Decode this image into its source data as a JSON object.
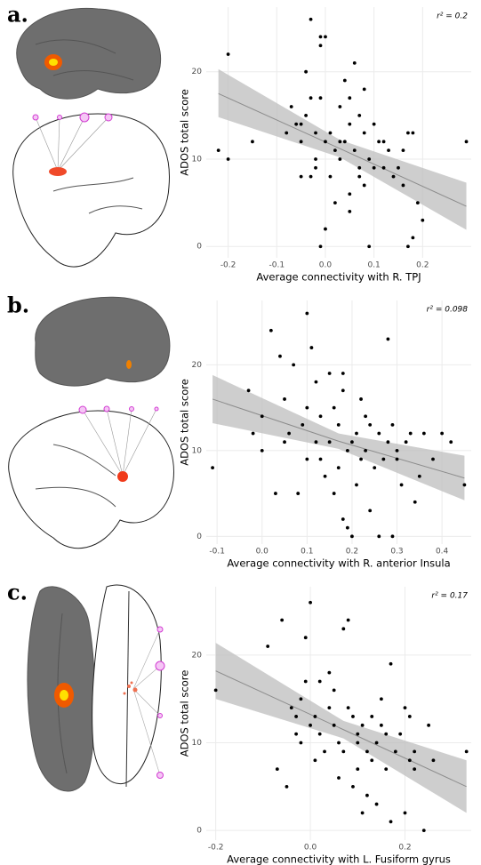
{
  "chart_data": [
    {
      "type": "scatter",
      "panel": "a.",
      "x_label": "Average connectivity with R. TPJ",
      "y_label": "ADOS total score",
      "annotation": "r² = 0.2",
      "color": "#000000",
      "band_color": "#bdbdbd",
      "line_color": "#8c8c8c",
      "xlim": [
        -0.245,
        0.3
      ],
      "ylim": [
        -1.3,
        27.4
      ],
      "xticks": [
        -0.2,
        -0.1,
        {
          "value": 0,
          "label": "0.0"
        },
        0.1,
        0.2
      ],
      "yticks": [
        0,
        10,
        20
      ],
      "grid": true,
      "x": [
        -0.22,
        -0.2,
        -0.2,
        -0.15,
        -0.08,
        -0.07,
        -0.06,
        -0.05,
        -0.05,
        -0.04,
        -0.04,
        -0.03,
        -0.03,
        -0.02,
        -0.02,
        -0.01,
        -0.01,
        -0.01,
        0,
        0,
        0.01,
        0.01,
        0.02,
        0.02,
        0.03,
        0.03,
        0.04,
        0.04,
        0.05,
        0.05,
        0.05,
        0.06,
        0.06,
        0.07,
        0.07,
        0.08,
        0.08,
        0.09,
        0.09,
        0.1,
        0.11,
        0.12,
        0.13,
        0.14,
        -0.02,
        -0.03,
        0.15,
        0.16,
        0.17,
        0.18,
        0.18,
        0.19,
        0.2,
        0.29,
        0.17,
        0,
        0.07,
        0.1,
        0.12,
        -0.05,
        0.03,
        0.16,
        -0.01,
        0.05,
        0.08
      ],
      "values": [
        11,
        22,
        10,
        12,
        13,
        16,
        14,
        14,
        12,
        20,
        15,
        17,
        26,
        13,
        9,
        17,
        23,
        24,
        24,
        12,
        8,
        13,
        11,
        5,
        10,
        16,
        19,
        12,
        14,
        6,
        4,
        11,
        21,
        8,
        15,
        7,
        13,
        10,
        0,
        9,
        12,
        9,
        11,
        8,
        10,
        8,
        9,
        7,
        13,
        13,
        1,
        5,
        3,
        12,
        0,
        2,
        9,
        14,
        12,
        8,
        12,
        11,
        0,
        17,
        18
      ],
      "fit": {
        "x": [
          -0.22,
          0.03,
          0.29
        ],
        "y": [
          17.5,
          11.2,
          4.6
        ],
        "ci_low": [
          14.8,
          10.2,
          1.9
        ],
        "ci_high": [
          20.3,
          12.2,
          7.3
        ]
      }
    },
    {
      "type": "scatter",
      "panel": "b.",
      "x_label": "Average connectivity with R. anterior Insula",
      "y_label": "ADOS total score",
      "annotation": "r² = 0.098",
      "color": "#000000",
      "band_color": "#bdbdbd",
      "line_color": "#8c8c8c",
      "xlim": [
        -0.124,
        0.465
      ],
      "ylim": [
        -0.9,
        27.5
      ],
      "xticks": [
        -0.1,
        {
          "value": 0,
          "label": "0.0"
        },
        0.1,
        0.2,
        0.3,
        0.4
      ],
      "yticks": [
        0,
        10,
        20
      ],
      "grid": true,
      "x": [
        -0.11,
        -0.03,
        -0.02,
        0,
        0,
        0.02,
        0.03,
        0.04,
        0.05,
        0.06,
        0.07,
        0.08,
        0.09,
        0.1,
        0.1,
        0.11,
        0.12,
        0.13,
        0.13,
        0.14,
        0.15,
        0.15,
        0.16,
        0.16,
        0.17,
        0.17,
        0.18,
        0.18,
        0.19,
        0.19,
        0.2,
        0.2,
        0.21,
        0.21,
        0.22,
        0.22,
        0.23,
        0.23,
        0.24,
        0.25,
        0.26,
        0.26,
        0.27,
        0.28,
        0.28,
        0.29,
        0.29,
        0.3,
        0.31,
        0.32,
        0.33,
        0.34,
        0.35,
        0.36,
        0.38,
        0.4,
        0.42,
        0.45,
        0.18,
        0.12,
        0.24,
        0.3,
        0.05,
        0.1
      ],
      "values": [
        8,
        17,
        12,
        14,
        10,
        24,
        5,
        21,
        16,
        12,
        20,
        5,
        13,
        26,
        15,
        22,
        11,
        14,
        9,
        7,
        19,
        11,
        15,
        5,
        13,
        8,
        17,
        2,
        10,
        1,
        0,
        11,
        12,
        6,
        16,
        9,
        14,
        10,
        3,
        8,
        12,
        0,
        9,
        11,
        23,
        13,
        0,
        10,
        6,
        11,
        12,
        4,
        7,
        12,
        9,
        12,
        11,
        6,
        19,
        18,
        13,
        9,
        11,
        9
      ],
      "fit": {
        "x": [
          -0.11,
          0.17,
          0.45
        ],
        "y": [
          16,
          11.1,
          6.8
        ],
        "ci_low": [
          13.2,
          10.2,
          4.2
        ],
        "ci_high": [
          18.8,
          12,
          9.4
        ]
      }
    },
    {
      "type": "scatter",
      "panel": "c.",
      "x_label": "Average connectivity with L. Fusiform gyrus",
      "y_label": "ADOS total score",
      "annotation": "r² = 0.17",
      "color": "#000000",
      "band_color": "#bdbdbd",
      "line_color": "#8c8c8c",
      "xlim": [
        -0.22,
        0.34
      ],
      "ylim": [
        -1.1,
        27.8
      ],
      "xticks": [
        -0.2,
        {
          "value": 0,
          "label": "0.0"
        },
        0.2
      ],
      "yticks": [
        0,
        10,
        20
      ],
      "grid": true,
      "x": [
        -0.2,
        -0.09,
        -0.07,
        -0.06,
        -0.05,
        -0.04,
        -0.03,
        -0.02,
        -0.02,
        -0.01,
        -0.01,
        0,
        0,
        0.01,
        0.01,
        0.02,
        0.02,
        0.03,
        0.04,
        0.05,
        0.05,
        0.06,
        0.06,
        0.07,
        0.07,
        0.08,
        0.08,
        0.09,
        0.09,
        0.1,
        0.1,
        0.11,
        0.11,
        0.12,
        0.12,
        0.13,
        0.13,
        0.14,
        0.14,
        0.15,
        0.16,
        0.17,
        0.17,
        0.18,
        0.19,
        0.2,
        0.2,
        0.21,
        0.21,
        0.22,
        0.22,
        0.24,
        0.25,
        0.26,
        0.33,
        0.04,
        0.15,
        0.1,
        -0.03,
        0.16
      ],
      "values": [
        16,
        21,
        7,
        24,
        5,
        14,
        13,
        15,
        10,
        22,
        17,
        26,
        12,
        13,
        8,
        17,
        11,
        9,
        14,
        16,
        12,
        10,
        6,
        23,
        9,
        24,
        14,
        13,
        5,
        10,
        7,
        12,
        2,
        9,
        4,
        13,
        8,
        10,
        3,
        12,
        7,
        19,
        1,
        9,
        11,
        14,
        2,
        8,
        13,
        7,
        9,
        0,
        12,
        8,
        9,
        18,
        15,
        11,
        11,
        11
      ],
      "fit": {
        "x": [
          -0.2,
          0.07,
          0.33
        ],
        "y": [
          18.2,
          11.5,
          5
        ],
        "ci_low": [
          15,
          10.5,
          2
        ],
        "ci_high": [
          21.4,
          12.5,
          8
        ]
      }
    }
  ]
}
